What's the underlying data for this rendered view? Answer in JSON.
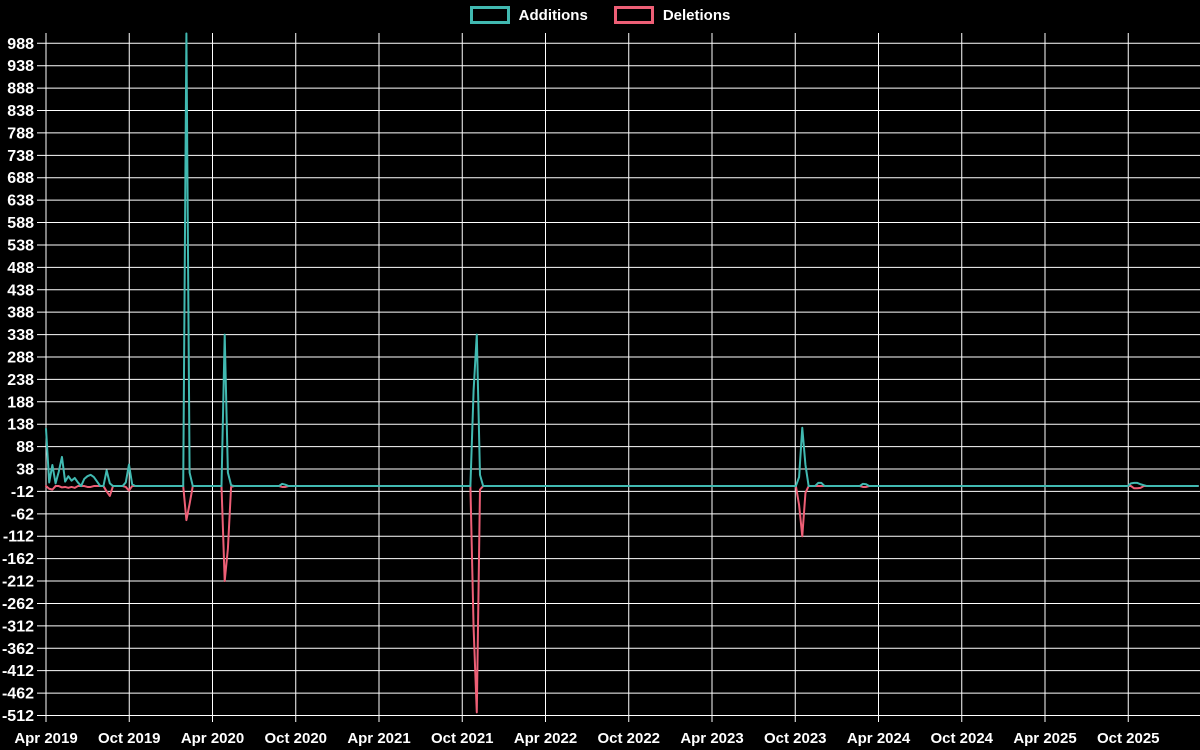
{
  "legend": {
    "additions_label": "Additions",
    "deletions_label": "Deletions"
  },
  "colors": {
    "background": "#000000",
    "grid": "#ffffff",
    "text": "#ffffff",
    "additions": "#41b9b1",
    "deletions": "#ee5f76"
  },
  "chart_data": {
    "type": "line",
    "title": "",
    "xlabel": "",
    "ylabel": "",
    "legend_position": "top-center",
    "grid": true,
    "x_tick_labels": [
      "Apr 2019",
      "Oct 2019",
      "Apr 2020",
      "Oct 2020",
      "Apr 2021",
      "Oct 2021",
      "Apr 2022",
      "Oct 2022",
      "Apr 2023",
      "Oct 2023",
      "Apr 2024",
      "Oct 2024",
      "Apr 2025",
      "Oct 2025"
    ],
    "y_ticks": [
      988,
      938,
      888,
      838,
      788,
      738,
      688,
      638,
      588,
      538,
      488,
      438,
      388,
      338,
      288,
      238,
      188,
      138,
      88,
      38,
      -12,
      -62,
      -112,
      -162,
      -212,
      -262,
      -312,
      -362,
      -412,
      -462,
      -512
    ],
    "ylim": [
      -512,
      1010
    ],
    "x_unit": "week",
    "total_weeks": 362,
    "series": [
      {
        "name": "Additions",
        "color": "#41b9b1",
        "default_value": 0
      },
      {
        "name": "Deletions",
        "color": "#ee5f76",
        "default_value": 0
      }
    ],
    "nonzero_weeks": [
      {
        "week": 0,
        "additions": 128,
        "deletions": 0
      },
      {
        "week": 1,
        "additions": 8,
        "deletions": -6
      },
      {
        "week": 2,
        "additions": 47,
        "deletions": -8
      },
      {
        "week": 3,
        "additions": 6,
        "deletions": 0
      },
      {
        "week": 4,
        "additions": 32,
        "deletions": 0
      },
      {
        "week": 5,
        "additions": 65,
        "deletions": -3
      },
      {
        "week": 6,
        "additions": 10,
        "deletions": -2
      },
      {
        "week": 7,
        "additions": 22,
        "deletions": -4
      },
      {
        "week": 8,
        "additions": 12,
        "deletions": -2
      },
      {
        "week": 9,
        "additions": 18,
        "deletions": -4
      },
      {
        "week": 10,
        "additions": 8,
        "deletions": 0
      },
      {
        "week": 12,
        "additions": 16,
        "deletions": 0
      },
      {
        "week": 13,
        "additions": 22,
        "deletions": -2
      },
      {
        "week": 14,
        "additions": 25,
        "deletions": -2
      },
      {
        "week": 15,
        "additions": 20,
        "deletions": 0
      },
      {
        "week": 16,
        "additions": 10,
        "deletions": 0
      },
      {
        "week": 19,
        "additions": 35,
        "deletions": -12
      },
      {
        "week": 20,
        "additions": 6,
        "deletions": -22
      },
      {
        "week": 25,
        "additions": 8,
        "deletions": -2
      },
      {
        "week": 26,
        "additions": 48,
        "deletions": -10
      },
      {
        "week": 27,
        "additions": 4,
        "deletions": 0
      },
      {
        "week": 44,
        "additions": 1010,
        "deletions": -76
      },
      {
        "week": 45,
        "additions": 30,
        "deletions": -40
      },
      {
        "week": 56,
        "additions": 338,
        "deletions": -212
      },
      {
        "week": 57,
        "additions": 30,
        "deletions": -140
      },
      {
        "week": 58,
        "additions": 2,
        "deletions": -2
      },
      {
        "week": 74,
        "additions": 5,
        "deletions": -2
      },
      {
        "week": 75,
        "additions": 3,
        "deletions": -2
      },
      {
        "week": 134,
        "additions": 213,
        "deletions": -316
      },
      {
        "week": 135,
        "additions": 338,
        "deletions": -505
      },
      {
        "week": 136,
        "additions": 25,
        "deletions": -8
      },
      {
        "week": 236,
        "additions": 20,
        "deletions": -42
      },
      {
        "week": 237,
        "additions": 130,
        "deletions": -112
      },
      {
        "week": 238,
        "additions": 47,
        "deletions": -15
      },
      {
        "week": 242,
        "additions": 7,
        "deletions": 0
      },
      {
        "week": 243,
        "additions": 7,
        "deletions": 0
      },
      {
        "week": 256,
        "additions": 5,
        "deletions": -2
      },
      {
        "week": 257,
        "additions": 4,
        "deletions": -2
      },
      {
        "week": 340,
        "additions": 6,
        "deletions": 0
      },
      {
        "week": 341,
        "additions": 7,
        "deletions": -5
      },
      {
        "week": 342,
        "additions": 7,
        "deletions": -5
      },
      {
        "week": 343,
        "additions": 4,
        "deletions": -4
      },
      {
        "week": 344,
        "additions": 2,
        "deletions": 0
      }
    ]
  }
}
